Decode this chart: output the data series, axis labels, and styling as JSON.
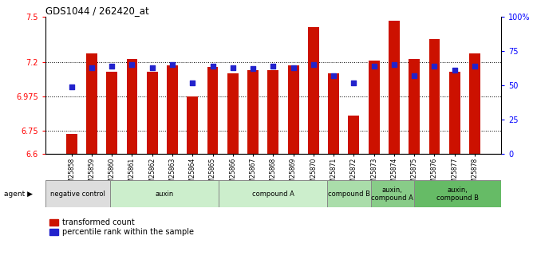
{
  "title": "GDS1044 / 262420_at",
  "samples": [
    "GSM25858",
    "GSM25859",
    "GSM25860",
    "GSM25861",
    "GSM25862",
    "GSM25863",
    "GSM25864",
    "GSM25865",
    "GSM25866",
    "GSM25867",
    "GSM25868",
    "GSM25869",
    "GSM25870",
    "GSM25871",
    "GSM25872",
    "GSM25873",
    "GSM25874",
    "GSM25875",
    "GSM25876",
    "GSM25877",
    "GSM25878"
  ],
  "bar_values": [
    6.73,
    7.26,
    7.14,
    7.22,
    7.14,
    7.18,
    6.975,
    7.17,
    7.13,
    7.15,
    7.15,
    7.18,
    7.43,
    7.13,
    6.85,
    7.21,
    7.47,
    7.22,
    7.35,
    7.14,
    7.26
  ],
  "percentile_values": [
    49,
    63,
    64,
    65,
    63,
    65,
    52,
    64,
    63,
    62,
    64,
    63,
    65,
    57,
    52,
    64,
    65,
    57,
    64,
    61,
    64
  ],
  "ylim_left": [
    6.6,
    7.5
  ],
  "ylim_right": [
    0,
    100
  ],
  "yticks_left": [
    6.6,
    6.75,
    6.975,
    7.2,
    7.5
  ],
  "yticks_left_labels": [
    "6.6",
    "6.75",
    "6.975",
    "7.2",
    "7.5"
  ],
  "yticks_right": [
    0,
    25,
    50,
    75,
    100
  ],
  "yticks_right_labels": [
    "0",
    "25",
    "50",
    "75",
    "100%"
  ],
  "bar_color": "#cc1100",
  "dot_color": "#2222cc",
  "background_color": "#ffffff",
  "agent_groups": [
    {
      "label": "negative control",
      "start": 0,
      "end": 3,
      "color": "#dddddd"
    },
    {
      "label": "auxin",
      "start": 3,
      "end": 8,
      "color": "#cceecc"
    },
    {
      "label": "compound A",
      "start": 8,
      "end": 13,
      "color": "#cceecc"
    },
    {
      "label": "compound B",
      "start": 13,
      "end": 15,
      "color": "#aaddaa"
    },
    {
      "label": "auxin,\ncompound A",
      "start": 15,
      "end": 17,
      "color": "#88cc88"
    },
    {
      "label": "auxin,\ncompound B",
      "start": 17,
      "end": 21,
      "color": "#66bb66"
    }
  ],
  "legend_red_label": "transformed count",
  "legend_blue_label": "percentile rank within the sample",
  "bar_width": 0.55
}
